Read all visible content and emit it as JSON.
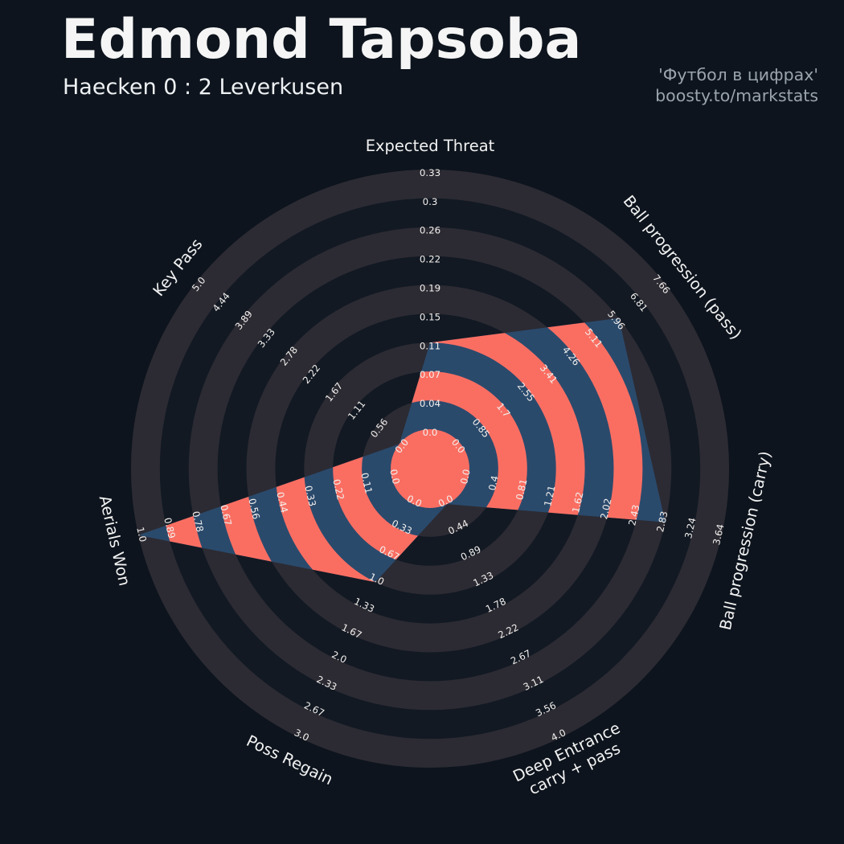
{
  "header": {
    "title": "Edmond Tapsoba",
    "subtitle": "Haecken 0 : 2 Leverkusen",
    "brand_line1": "'Футбол в цифрах'",
    "brand_line2": "boosty.to/markstats"
  },
  "chart_data": {
    "type": "radar",
    "title": "Edmond Tapsoba",
    "subtitle": "Haecken 0 : 2 Leverkusen",
    "num_rings": 9,
    "legend_position": "none",
    "grid": "concentric-rings",
    "axes": [
      {
        "label": "Expected Threat",
        "lines": [
          "Expected Threat"
        ],
        "ticks": [
          "0.0",
          "0.04",
          "0.07",
          "0.11",
          "0.15",
          "0.19",
          "0.22",
          "0.26",
          "0.3",
          "0.33"
        ],
        "max": 0.33,
        "value": 0.11
      },
      {
        "label": "Ball progression (pass)",
        "lines": [
          "Ball progression (pass)"
        ],
        "ticks": [
          "0.0",
          "0.85",
          "1.7",
          "2.55",
          "3.41",
          "4.26",
          "5.11",
          "5.96",
          "6.81",
          "7.66"
        ],
        "max": 7.66,
        "value": 5.96
      },
      {
        "label": "Ball progression (carry)",
        "lines": [
          "Ball progression (carry)"
        ],
        "ticks": [
          "0.0",
          "0.4",
          "0.81",
          "1.21",
          "1.62",
          "2.02",
          "2.43",
          "2.83",
          "3.24",
          "3.64"
        ],
        "max": 3.64,
        "value": 2.83
      },
      {
        "label": "Deep Entrance carry + pass",
        "lines": [
          "Deep Entrance",
          "carry + pass"
        ],
        "ticks": [
          "0.0",
          "0.44",
          "0.89",
          "1.33",
          "1.78",
          "2.22",
          "2.67",
          "3.11",
          "3.56",
          "4.0"
        ],
        "max": 4.0,
        "value": 0.0
      },
      {
        "label": "Poss Regain",
        "lines": [
          "Poss Regain"
        ],
        "ticks": [
          "0.0",
          "0.33",
          "0.67",
          "1.0",
          "1.33",
          "1.67",
          "2.0",
          "2.33",
          "2.67",
          "3.0"
        ],
        "max": 3.0,
        "value": 1.0
      },
      {
        "label": "Aerials Won",
        "lines": [
          "Aerials Won"
        ],
        "ticks": [
          "0.0",
          "0.11",
          "0.22",
          "0.33",
          "0.44",
          "0.56",
          "0.67",
          "0.78",
          "0.89",
          "1.0"
        ],
        "max": 1.0,
        "value": 1.0
      },
      {
        "label": "Key Pass",
        "lines": [
          "Key Pass"
        ],
        "ticks": [
          "0.0",
          "0.56",
          "1.11",
          "1.67",
          "2.22",
          "2.78",
          "3.33",
          "3.89",
          "4.44",
          "5.0"
        ],
        "max": 5.0,
        "value": 0.0
      }
    ],
    "colors": {
      "background": "#0d141d",
      "ring_light": "#2c2b33",
      "ring_dark": "#121923",
      "polygon_blue": "#2a4a6c",
      "polygon_salmon": "#fa6e62",
      "tick_text": "#f3f0ed",
      "axis_text": "#f2f2f2",
      "title_text": "#f5f5f5",
      "muted_text": "#9ba4ad"
    }
  }
}
